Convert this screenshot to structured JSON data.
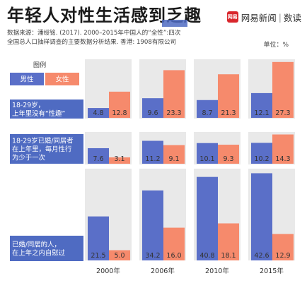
{
  "header": {
    "title": "年轻人对性生活感到乏趣",
    "source_line1": "数据来源：潘绥铭. (2017). 2000–2015年中国人的“全性”:四次",
    "source_line2": "全国总人口抽样调查的主要数据分析结果. 香港: 1908有限公司",
    "unit": "单位：%",
    "brand_logo_text": "网易",
    "brand_name": "网易新闻",
    "brand_sep": "|",
    "brand_sub": "数读"
  },
  "colors": {
    "male": "#5a6fc8",
    "female": "#f68a6c",
    "label_bg": "#4f6bc2",
    "band_bg": "#e9e9e9"
  },
  "chart_data": {
    "type": "bar",
    "title": "年轻人对性生活感到乏趣",
    "unit": "%",
    "legend_title": "图例",
    "categories": [
      "2000年",
      "2006年",
      "2010年",
      "2015年"
    ],
    "groups": [
      {
        "label": "18-29岁，上年里没有“性趣”",
        "series": [
          {
            "name": "男性",
            "values": [
              4.8,
              9.6,
              8.7,
              12.1
            ]
          },
          {
            "name": "女性",
            "values": [
              12.8,
              23.3,
              21.3,
              27.3
            ]
          }
        ]
      },
      {
        "label": "18-29岁已婚/同居者在上年里，每月性行为少于一次",
        "series": [
          {
            "name": "男性",
            "values": [
              7.6,
              11.2,
              10.1,
              10.2
            ]
          },
          {
            "name": "女性",
            "values": [
              3.1,
              9.1,
              9.3,
              14.3
            ]
          }
        ]
      },
      {
        "label": "已婚/同居的人，在上年之内自慰过",
        "series": [
          {
            "name": "男性",
            "values": [
              21.5,
              34.2,
              40.8,
              42.6
            ]
          },
          {
            "name": "女性",
            "values": [
              5.0,
              16.0,
              18.1,
              12.9
            ]
          }
        ]
      }
    ]
  }
}
